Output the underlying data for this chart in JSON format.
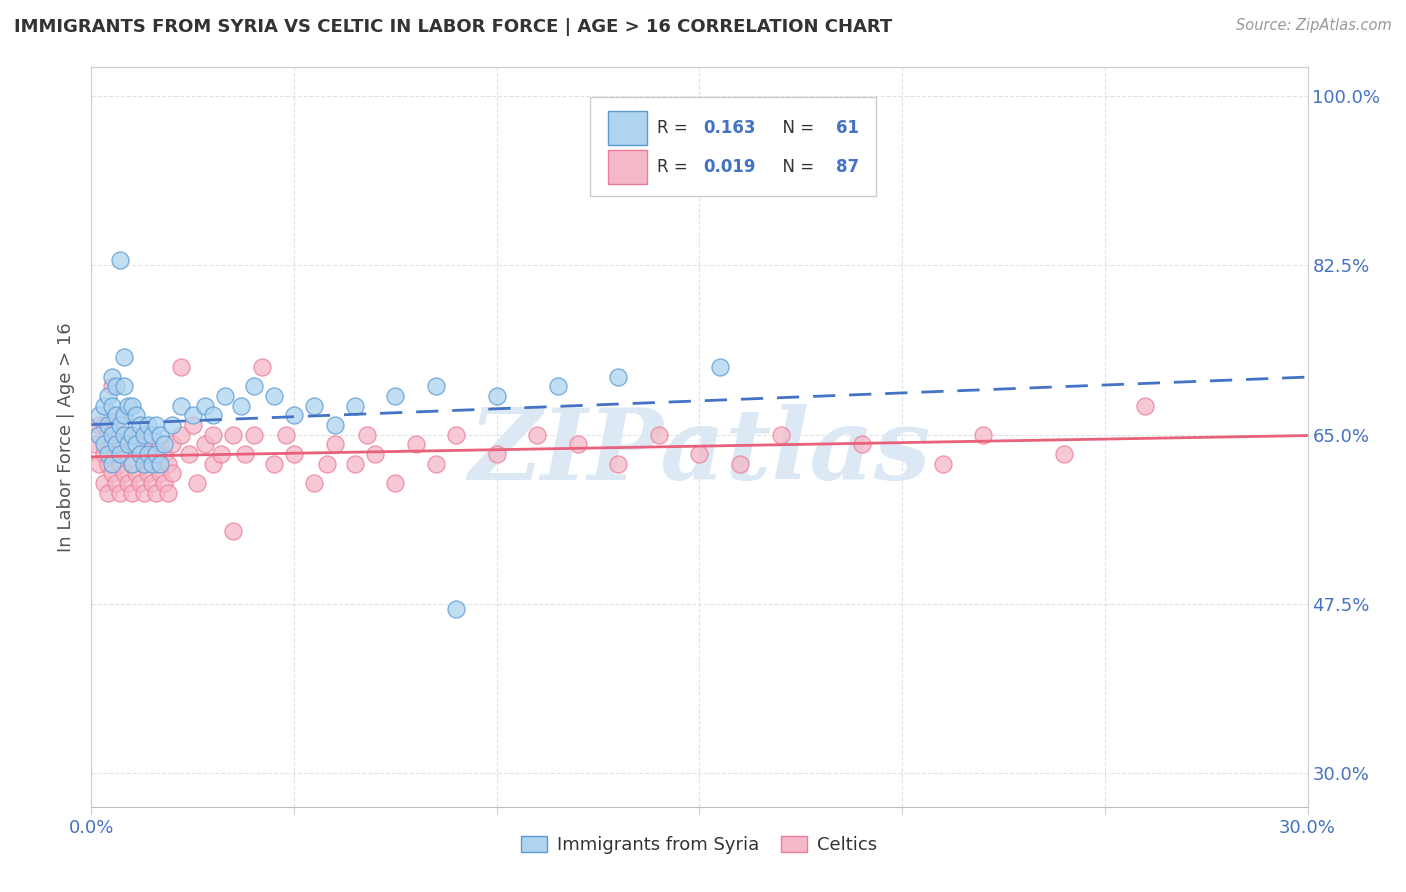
{
  "title": "IMMIGRANTS FROM SYRIA VS CELTIC IN LABOR FORCE | AGE > 16 CORRELATION CHART",
  "source": "Source: ZipAtlas.com",
  "ylabel": "In Labor Force | Age > 16",
  "yticks_labels": [
    "100.0%",
    "82.5%",
    "65.0%",
    "47.5%",
    "30.0%"
  ],
  "ytick_vals": [
    1.0,
    0.825,
    0.65,
    0.475,
    0.3
  ],
  "xlim": [
    0.0,
    0.3
  ],
  "ylim": [
    0.265,
    1.03
  ],
  "legend_r1_val": "0.163",
  "legend_n1_val": "61",
  "legend_r2_val": "0.019",
  "legend_n2_val": "87",
  "syria_fill_color": "#AED4F0",
  "celtic_fill_color": "#F5B8C8",
  "syria_edge_color": "#5B9BD5",
  "celtic_edge_color": "#ED7D96",
  "syria_line_color": "#4472C4",
  "celtic_line_color": "#E8607A",
  "text_blue": "#4472C4",
  "text_dark": "#404040",
  "background_color": "#FFFFFF",
  "grid_color": "#E0E0E0",
  "watermark_color": "#DDE8F5",
  "watermark_text": "ZIPatlas"
}
